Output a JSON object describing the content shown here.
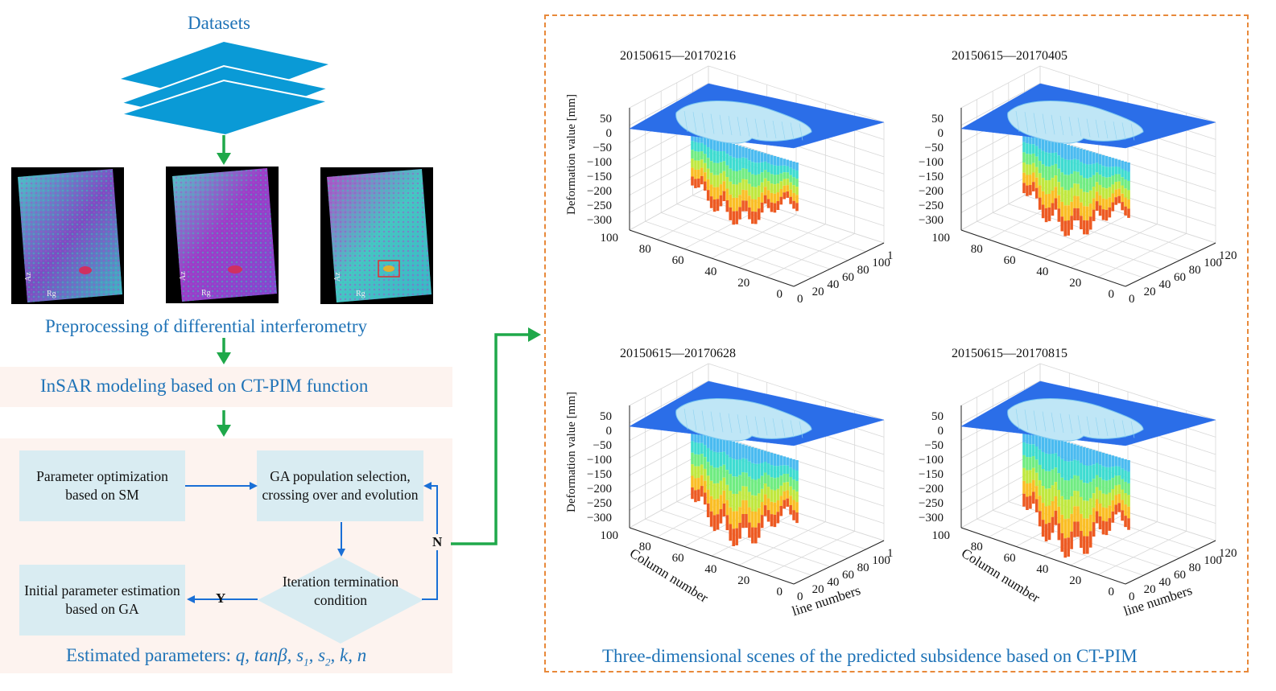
{
  "left": {
    "datasets_label": "Datasets",
    "preprocessing_label": "Preprocessing of differential interferometry",
    "modeling_label": "InSAR modeling based on CT-PIM function",
    "images": [
      {
        "az": "Az",
        "rg": "Rg"
      },
      {
        "az": "Az",
        "rg": "Rg"
      },
      {
        "az": "Az",
        "rg": "Rg"
      }
    ],
    "optimization": {
      "param_opt_box": "Parameter optimization based on SM",
      "ga_box": "GA population selection, crossing over and evolution",
      "iteration_diamond": "Iteration termination condition",
      "initial_box": "Initial parameter estimation based on GA",
      "yes_label": "Y",
      "no_label": "N"
    },
    "estimated_prefix": "Estimated parameters: ",
    "estimated_params": "q, tanβ, s",
    "estimated_params_parts": [
      "q",
      "tanβ",
      "s1",
      "s2",
      "k",
      "n"
    ]
  },
  "right": {
    "caption": "Three-dimensional scenes of the predicted subsidence based on CT-PIM",
    "plots": [
      {
        "title": "20150615—20170216",
        "depth": 0.55,
        "show_xy_labels": false
      },
      {
        "title": "20150615—20170405",
        "depth": 0.68,
        "show_xy_labels": false
      },
      {
        "title": "20150615—20170628",
        "depth": 0.82,
        "show_xy_labels": true
      },
      {
        "title": "20150615—20170815",
        "depth": 0.95,
        "show_xy_labels": true
      }
    ],
    "z_axis_label": "Deformation value [mm]",
    "x_axis_label": "Column number",
    "y_axis_label": "line numbers",
    "z_ticks": [
      "50",
      "0",
      "−50",
      "−100",
      "−150",
      "−200",
      "−250",
      "−300"
    ],
    "col_ticks": [
      "100",
      "80",
      "60",
      "40",
      "20",
      "0"
    ],
    "line_ticks": [
      "0",
      "20",
      "40",
      "60",
      "80",
      "100",
      "120"
    ]
  },
  "colors": {
    "title_blue": "#1f73b7",
    "flow_green": "#1fa84a",
    "flow_blue": "#1a6fd6",
    "box_fill": "#d9ecf2",
    "panel_fill": "#fdf3ef",
    "dash_orange": "#e8893a",
    "surface_blue": "#2b6ee8"
  }
}
